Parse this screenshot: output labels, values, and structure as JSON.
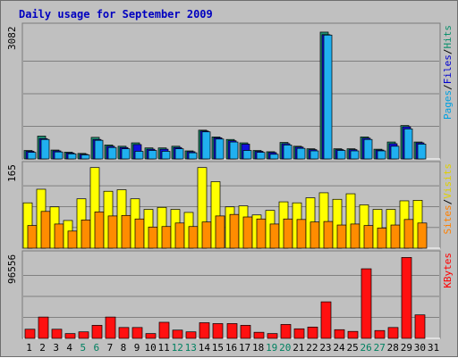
{
  "chart_data": {
    "title": "Daily usage for September 2009",
    "days": [
      "1",
      "2",
      "3",
      "4",
      "5",
      "6",
      "7",
      "8",
      "9",
      "10",
      "11",
      "12",
      "13",
      "14",
      "15",
      "16",
      "17",
      "18",
      "19",
      "20",
      "21",
      "22",
      "23",
      "24",
      "25",
      "26",
      "27",
      "28",
      "29",
      "30",
      "31"
    ],
    "weekend_days": [
      "5",
      "6",
      "12",
      "13",
      "19",
      "20",
      "26",
      "27"
    ],
    "panels": [
      {
        "type": "bar",
        "max_label": "3082",
        "max": 3082,
        "legend": [
          {
            "text": "Pages",
            "color": "#00a0e0"
          },
          {
            "text": "/",
            "color": "#000000"
          },
          {
            "text": "Files",
            "color": "#0000d0"
          },
          {
            "text": "/",
            "color": "#000000"
          },
          {
            "text": "Hits",
            "color": "#0b8f6b"
          }
        ],
        "series": [
          {
            "name": "Hits",
            "color": "#1f8f74",
            "values": [
              200,
              540,
              210,
              160,
              130,
              510,
              330,
              300,
              380,
              260,
              260,
              300,
              190,
              680,
              520,
              460,
              380,
              200,
              170,
              390,
              300,
              240,
              3000,
              240,
              240,
              520,
              230,
              400,
              790,
              400,
              null
            ]
          },
          {
            "name": "Files",
            "color": "#1010e0",
            "values": [
              180,
              480,
              190,
              140,
              110,
              460,
              300,
              270,
              340,
              230,
              230,
              270,
              170,
              660,
              500,
              430,
              350,
              180,
              150,
              360,
              280,
              220,
              2940,
              220,
              220,
              490,
              210,
              360,
              760,
              380,
              null
            ]
          },
          {
            "name": "Pages",
            "color": "#20b0f0",
            "values": [
              155,
              460,
              165,
              120,
              95,
              440,
              270,
              240,
              180,
              200,
              180,
              240,
              145,
              640,
              470,
              400,
              200,
              155,
              110,
              330,
              250,
              190,
              2930,
              200,
              190,
              460,
              190,
              300,
              710,
              350,
              null
            ]
          }
        ]
      },
      {
        "type": "bar",
        "max_label": "165",
        "max": 165,
        "legend": [
          {
            "text": "Sites",
            "color": "#ff8000"
          },
          {
            "text": "/",
            "color": "#000000"
          },
          {
            "text": "Visits",
            "color": "#e0d000"
          }
        ],
        "series": [
          {
            "name": "Visits",
            "color": "#ffff00",
            "values": [
              90,
              117,
              82,
              55,
              98,
              160,
              113,
              116,
              98,
              77,
              81,
              77,
              71,
              160,
              132,
              82,
              84,
              66,
              75,
              92,
              90,
              100,
              110,
              97,
              108,
              86,
              77,
              77,
              94,
              95,
              null
            ]
          },
          {
            "name": "Sites",
            "color": "#ff8c00",
            "values": [
              45,
              73,
              48,
              34,
              56,
              72,
              64,
              65,
              58,
              42,
              43,
              50,
              43,
              52,
              64,
              67,
              62,
              58,
              48,
              58,
              57,
              52,
              53,
              46,
              48,
              45,
              40,
              46,
              57,
              50,
              null
            ]
          }
        ]
      },
      {
        "type": "bar",
        "max_label": "96556",
        "max": 96556,
        "legend": [
          {
            "text": "KBytes",
            "color": "#ff0000"
          }
        ],
        "series": [
          {
            "name": "KBytes",
            "color": "#ff1010",
            "values": [
              10500,
              24500,
              10500,
              5500,
              7500,
              15000,
              24500,
              12500,
              12500,
              5500,
              18500,
              9500,
              7500,
              18000,
              17000,
              17000,
              15000,
              7000,
              5500,
              16000,
              11000,
              13000,
              42000,
              10000,
              8000,
              80000,
              9000,
              12500,
              93000,
              27000,
              null
            ]
          }
        ]
      }
    ]
  }
}
